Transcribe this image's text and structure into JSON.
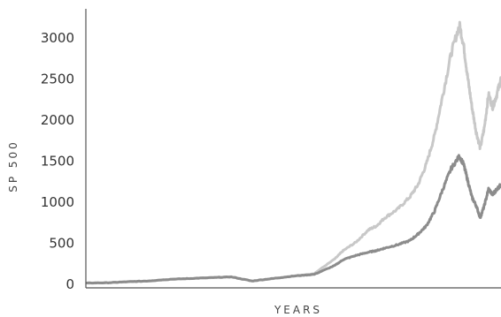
{
  "chart_data": {
    "type": "line",
    "title": "",
    "xlabel": "YEARS",
    "ylabel": "SP 500",
    "ylim": [
      0,
      3300
    ],
    "y_ticks": [
      0,
      500,
      1000,
      1500,
      2000,
      2500,
      3000
    ],
    "x_tick_labels": [],
    "grid": false,
    "legend": "none",
    "series": [
      {
        "color": "#c8c8c8",
        "x": [
          0,
          5,
          10,
          15,
          20,
          25,
          30,
          35,
          40,
          45,
          50,
          55,
          60,
          62,
          65,
          68,
          70,
          72,
          75,
          78,
          80,
          82,
          84,
          86,
          88,
          90,
          91,
          92,
          93,
          94,
          95,
          96,
          97,
          98,
          99,
          100
        ],
        "values": [
          5,
          8,
          20,
          30,
          50,
          60,
          70,
          80,
          30,
          60,
          90,
          120,
          300,
          400,
          500,
          650,
          700,
          800,
          900,
          1050,
          1200,
          1450,
          1800,
          2300,
          2800,
          3150,
          2900,
          2500,
          2150,
          1850,
          1650,
          1900,
          2300,
          2150,
          2300,
          2500
        ]
      },
      {
        "color": "#8c8c8c",
        "x": [
          0,
          5,
          10,
          15,
          20,
          25,
          30,
          35,
          40,
          45,
          50,
          55,
          60,
          62,
          65,
          68,
          70,
          72,
          75,
          78,
          80,
          82,
          84,
          86,
          88,
          90,
          91,
          92,
          93,
          94,
          95,
          96,
          97,
          98,
          99,
          100
        ],
        "values": [
          5,
          8,
          20,
          30,
          50,
          60,
          70,
          80,
          30,
          60,
          90,
          110,
          220,
          290,
          340,
          380,
          400,
          430,
          470,
          520,
          600,
          700,
          880,
          1150,
          1400,
          1550,
          1450,
          1250,
          1050,
          950,
          800,
          950,
          1150,
          1080,
          1150,
          1200
        ]
      }
    ]
  }
}
